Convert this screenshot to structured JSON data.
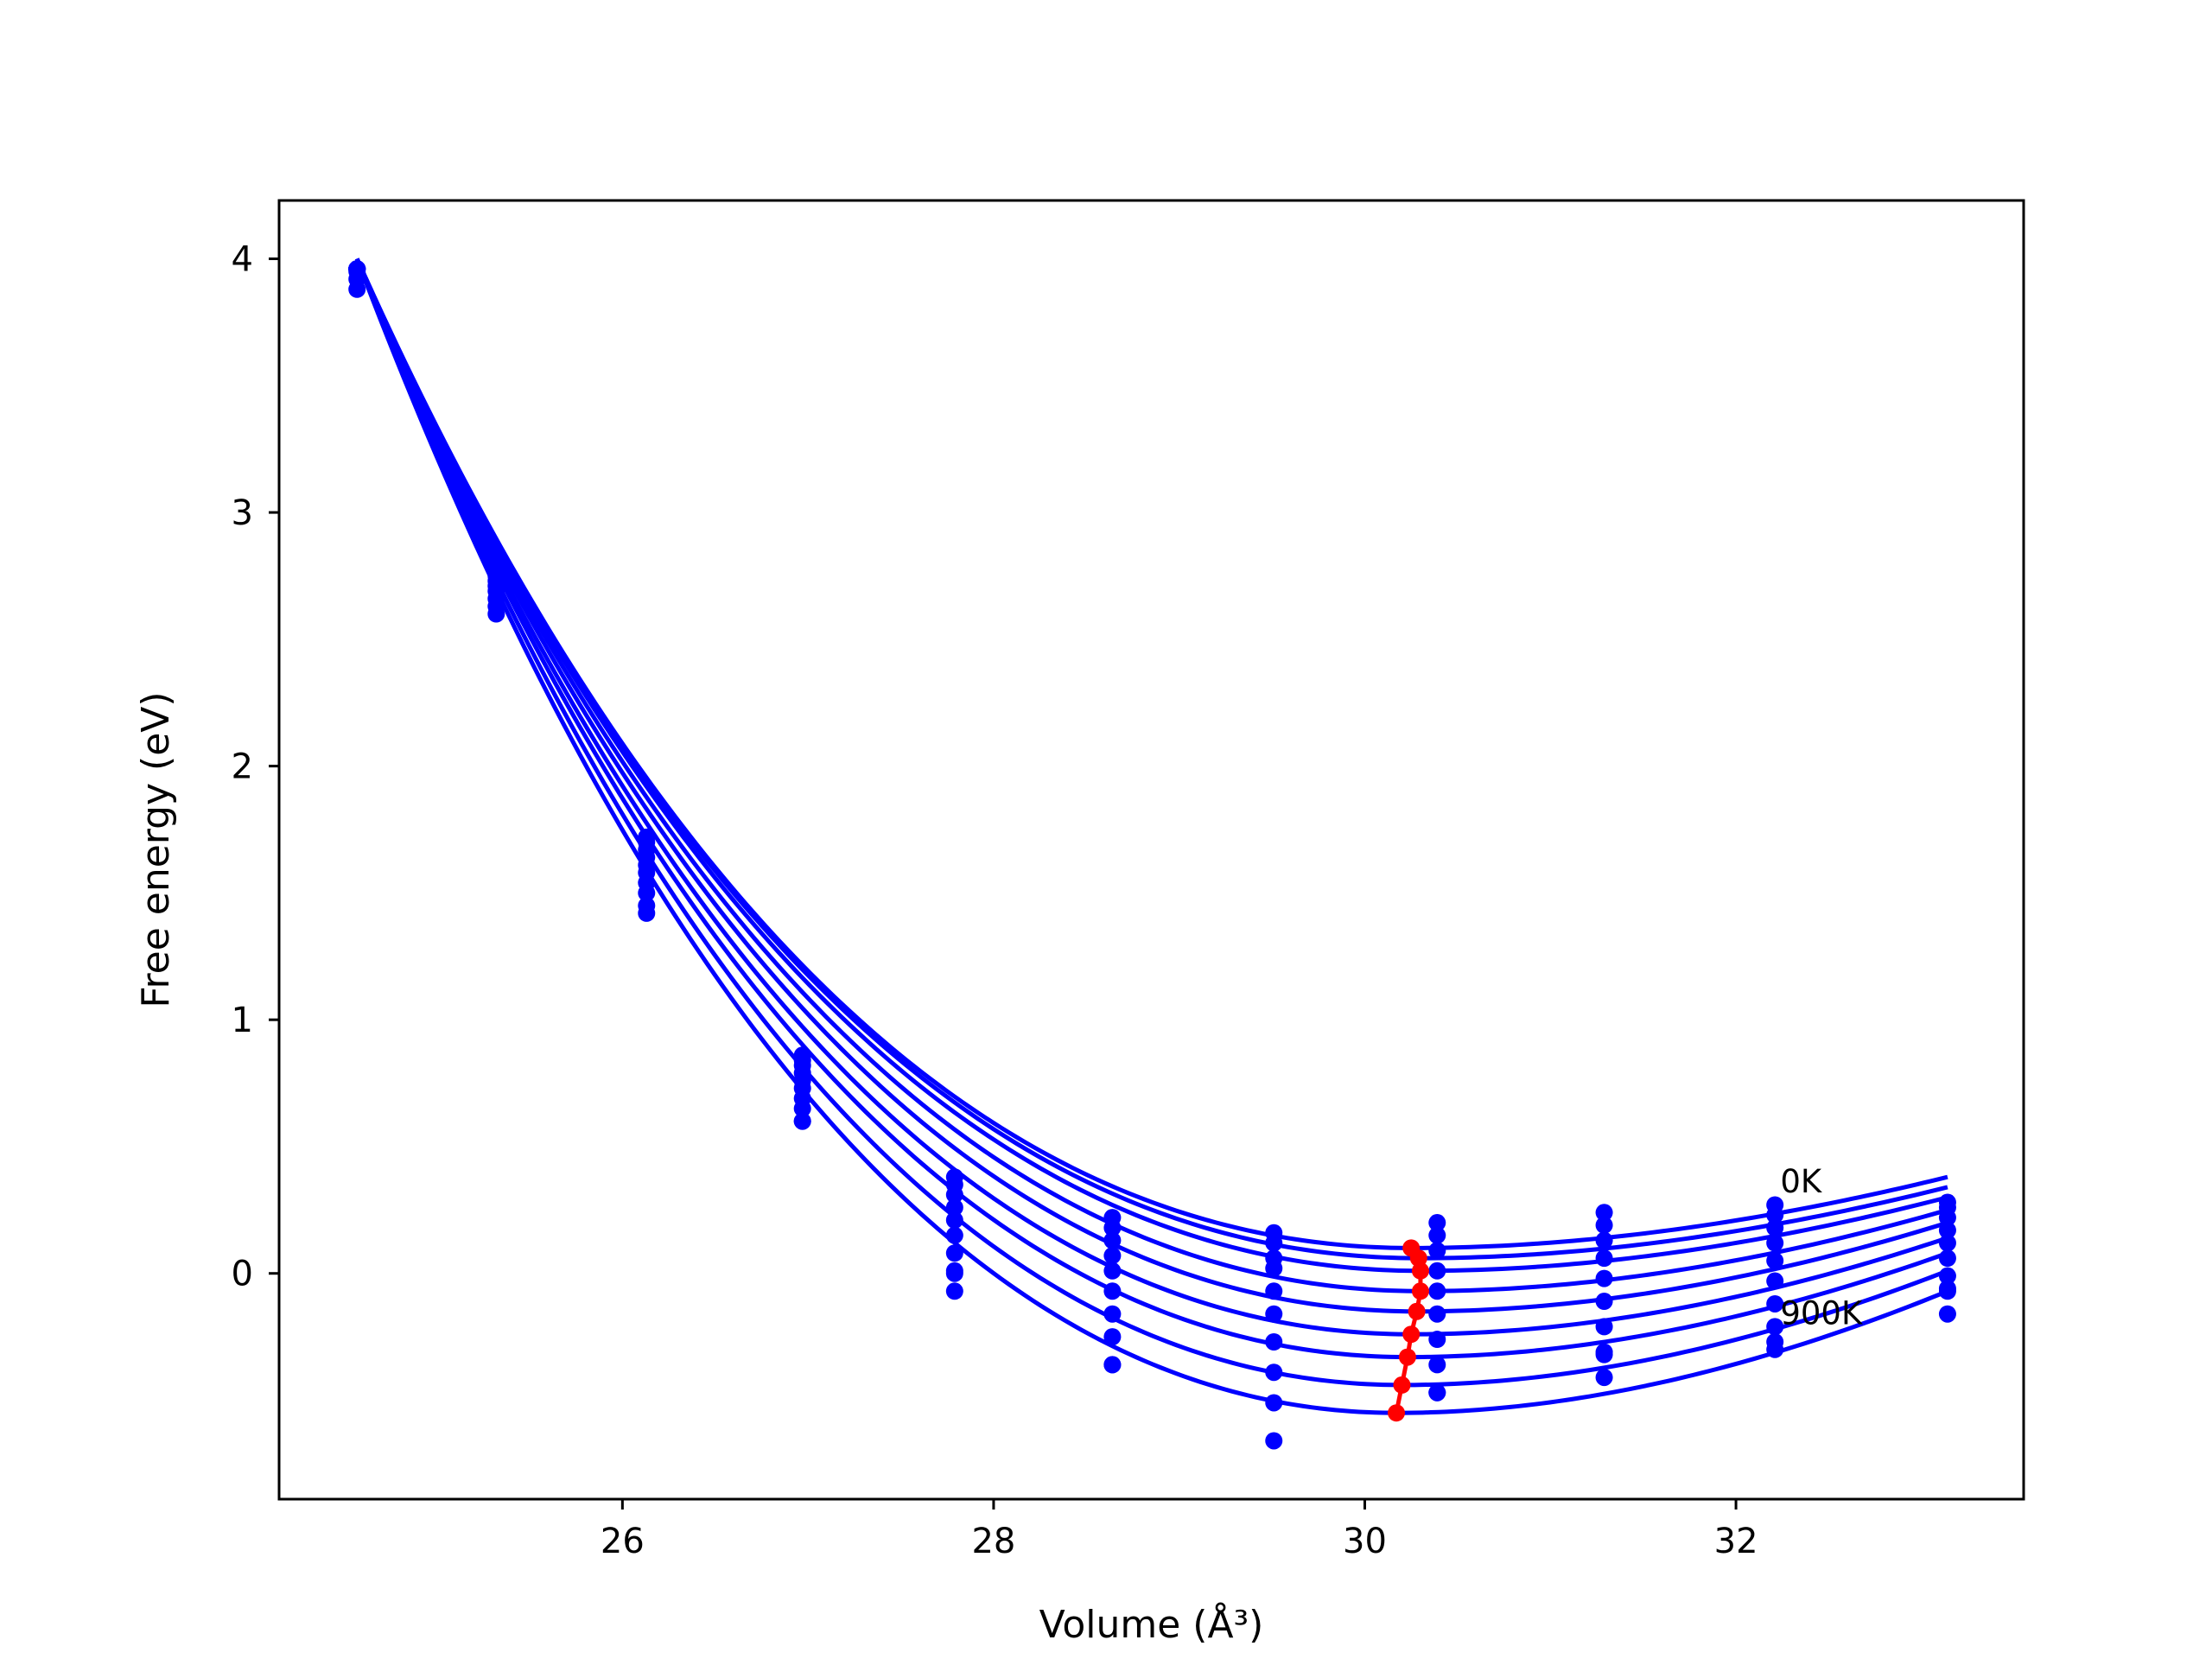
{
  "chart_data": {
    "type": "line",
    "title": "",
    "xlabel": "Volume (Å³)",
    "ylabel": "Free energy (eV)",
    "xlim": [
      24.15,
      33.55
    ],
    "ylim": [
      -0.89,
      4.23
    ],
    "xticks": [
      26,
      28,
      30,
      32
    ],
    "yticks": [
      0,
      1,
      2,
      3,
      4
    ],
    "grid": false,
    "legend": "none",
    "colors": {
      "curves": "#0000ff",
      "points": "#0000ff",
      "minima": "#ff0000"
    },
    "volumes": [
      24.57,
      25.32,
      26.13,
      26.97,
      27.79,
      28.64,
      29.51,
      30.39,
      31.29,
      32.21,
      33.14
    ],
    "series": [
      {
        "values": [
          3.96,
          2.81,
          1.72,
          0.86,
          0.38,
          0.22,
          0.16,
          0.2,
          0.24,
          0.27,
          0.28
        ]
      },
      {
        "values": [
          3.96,
          2.79,
          1.7,
          0.84,
          0.35,
          0.18,
          0.12,
          0.15,
          0.19,
          0.23,
          0.26
        ]
      },
      {
        "values": [
          3.96,
          2.77,
          1.67,
          0.82,
          0.31,
          0.13,
          0.06,
          0.09,
          0.13,
          0.18,
          0.22
        ]
      },
      {
        "values": [
          3.96,
          2.75,
          1.64,
          0.79,
          0.26,
          0.07,
          0.02,
          0.01,
          0.06,
          0.12,
          0.17
        ]
      },
      {
        "values": [
          3.96,
          2.73,
          1.61,
          0.76,
          0.21,
          0.01,
          -0.07,
          -0.07,
          -0.02,
          0.05,
          0.12
        ]
      },
      {
        "values": [
          3.96,
          2.71,
          1.58,
          0.73,
          0.15,
          -0.07,
          -0.16,
          -0.16,
          -0.11,
          -0.03,
          0.06
        ]
      },
      {
        "values": [
          3.96,
          2.69,
          1.54,
          0.69,
          0.08,
          -0.16,
          -0.27,
          -0.26,
          -0.21,
          -0.12,
          -0.01
        ]
      },
      {
        "values": [
          3.95,
          2.66,
          1.5,
          0.65,
          0.01,
          -0.25,
          -0.39,
          -0.36,
          -0.31,
          -0.21,
          -0.07
        ]
      },
      {
        "values": [
          3.92,
          2.63,
          1.45,
          0.6,
          -0.07,
          -0.36,
          -0.51,
          -0.47,
          -0.41,
          -0.3,
          -0.16
        ]
      },
      {
        "values": [
          3.88,
          2.6,
          1.42,
          0.6,
          0.0,
          -0.36,
          -0.66,
          -0.47,
          -0.32,
          -0.27,
          -0.06
        ]
      }
    ],
    "fitted_curves": [
      {
        "f0": 0.1,
        "v0": 30.25,
        "b": 0.5,
        "end": 0.38
      },
      {
        "f0": 0.06,
        "v0": 30.29,
        "b": 0.5,
        "end": 0.34
      },
      {
        "f0": 0.01,
        "v0": 30.3,
        "b": 0.49,
        "end": 0.3
      },
      {
        "f0": -0.07,
        "v0": 30.3,
        "b": 0.48,
        "end": 0.25
      },
      {
        "f0": -0.15,
        "v0": 30.28,
        "b": 0.47,
        "end": 0.2
      },
      {
        "f0": -0.24,
        "v0": 30.25,
        "b": 0.46,
        "end": 0.14
      },
      {
        "f0": -0.33,
        "v0": 30.23,
        "b": 0.45,
        "end": 0.08
      },
      {
        "f0": -0.44,
        "v0": 30.2,
        "b": 0.44,
        "end": 0.01
      },
      {
        "f0": -0.55,
        "v0": 30.17,
        "b": 0.42,
        "end": -0.07
      }
    ],
    "fit_x_range": [
      24.57,
      33.14
    ],
    "minima": {
      "x": [
        30.25,
        30.29,
        30.3,
        30.3,
        30.28,
        30.25,
        30.23,
        30.2,
        30.17
      ],
      "y": [
        0.1,
        0.06,
        0.01,
        -0.07,
        -0.15,
        -0.24,
        -0.33,
        -0.44,
        -0.55
      ]
    },
    "annotations": [
      {
        "text": "0K",
        "x": 32.22,
        "y": 0.32
      },
      {
        "text": "900K",
        "x": 32.22,
        "y": -0.2
      }
    ]
  }
}
